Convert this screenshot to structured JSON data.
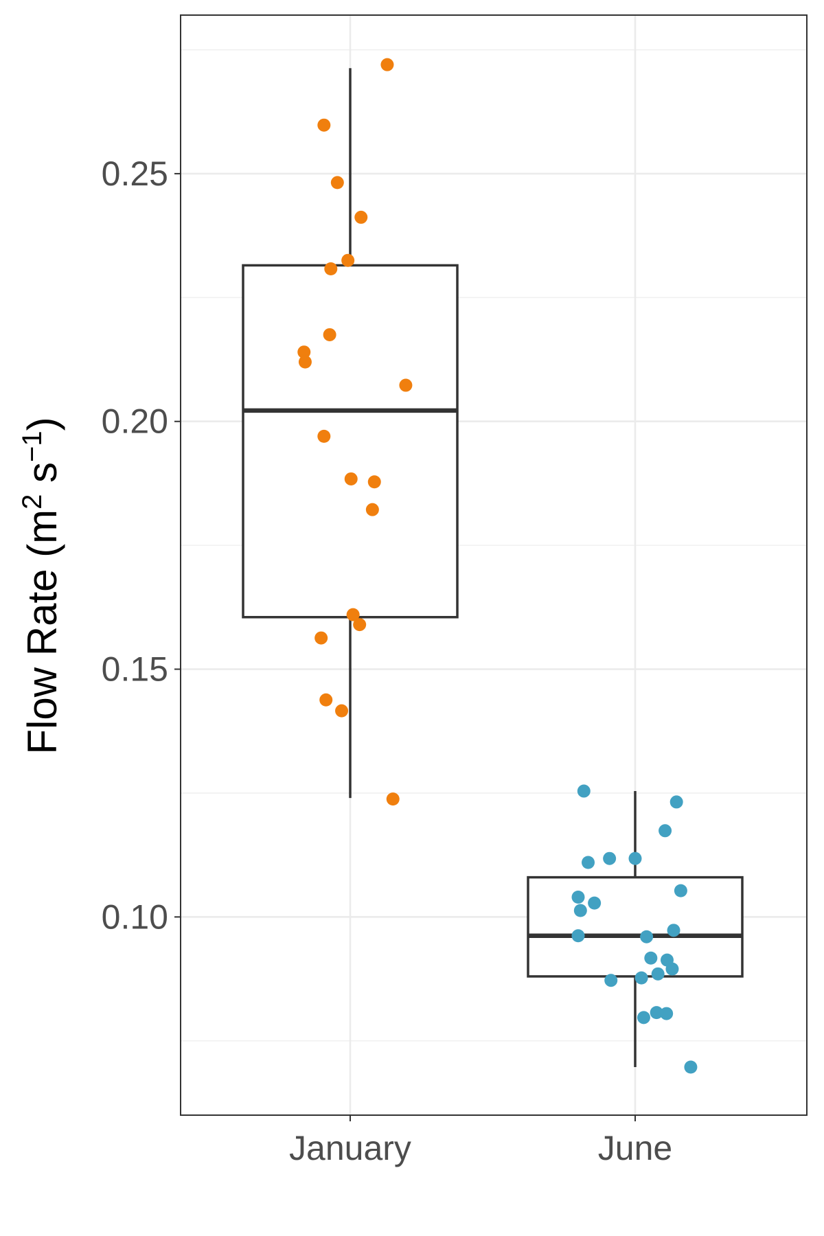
{
  "chart_data": {
    "type": "box",
    "title": "",
    "xlabel": "",
    "ylabel": {
      "text": "Flow Rate (m",
      "sup1": "2",
      "mid": " s",
      "sup2": "−1",
      "end": ")"
    },
    "ylim": [
      0.06,
      0.282
    ],
    "y_ticks": [
      0.1,
      0.15,
      0.2,
      0.25
    ],
    "y_tick_labels": [
      "0.10",
      "0.15",
      "0.20",
      "0.25"
    ],
    "y_minor_ticks": [
      0.075,
      0.125,
      0.175,
      0.225,
      0.275
    ],
    "categories": [
      "January",
      "June"
    ],
    "grid": true,
    "boxes": [
      {
        "category": "January",
        "color": "#f07f0e",
        "whisker_low": 0.124,
        "q1": 0.1605,
        "median": 0.2022,
        "q3": 0.2315,
        "whisker_high": 0.2713,
        "points": [
          {
            "x": 1.13,
            "y": 0.272
          },
          {
            "x": 0.908,
            "y": 0.2598
          },
          {
            "x": 0.955,
            "y": 0.2482
          },
          {
            "x": 1.038,
            "y": 0.2412
          },
          {
            "x": 0.992,
            "y": 0.2325
          },
          {
            "x": 0.932,
            "y": 0.2308
          },
          {
            "x": 0.928,
            "y": 0.2175
          },
          {
            "x": 0.838,
            "y": 0.214
          },
          {
            "x": 0.842,
            "y": 0.212
          },
          {
            "x": 1.195,
            "y": 0.2073
          },
          {
            "x": 0.908,
            "y": 0.197
          },
          {
            "x": 1.003,
            "y": 0.1884
          },
          {
            "x": 1.085,
            "y": 0.1878
          },
          {
            "x": 1.078,
            "y": 0.1822
          },
          {
            "x": 1.01,
            "y": 0.161
          },
          {
            "x": 1.033,
            "y": 0.159
          },
          {
            "x": 0.898,
            "y": 0.1563
          },
          {
            "x": 0.915,
            "y": 0.1438
          },
          {
            "x": 0.97,
            "y": 0.1416
          },
          {
            "x": 1.15,
            "y": 0.1238
          }
        ]
      },
      {
        "category": "June",
        "color": "#42a1c2",
        "whisker_low": 0.0697,
        "q1": 0.088,
        "median": 0.0962,
        "q3": 0.108,
        "whisker_high": 0.1254,
        "points": [
          {
            "x": 1.82,
            "y": 0.1254
          },
          {
            "x": 2.145,
            "y": 0.1232
          },
          {
            "x": 2.105,
            "y": 0.1174
          },
          {
            "x": 1.835,
            "y": 0.111
          },
          {
            "x": 1.91,
            "y": 0.1118
          },
          {
            "x": 2.0,
            "y": 0.1118
          },
          {
            "x": 2.16,
            "y": 0.1053
          },
          {
            "x": 1.8,
            "y": 0.104
          },
          {
            "x": 1.857,
            "y": 0.1028
          },
          {
            "x": 1.808,
            "y": 0.1013
          },
          {
            "x": 1.8,
            "y": 0.0962
          },
          {
            "x": 2.04,
            "y": 0.096
          },
          {
            "x": 2.135,
            "y": 0.0973
          },
          {
            "x": 2.055,
            "y": 0.0917
          },
          {
            "x": 2.112,
            "y": 0.0913
          },
          {
            "x": 2.13,
            "y": 0.0895
          },
          {
            "x": 2.08,
            "y": 0.0885
          },
          {
            "x": 2.022,
            "y": 0.0877
          },
          {
            "x": 1.915,
            "y": 0.0872
          },
          {
            "x": 2.075,
            "y": 0.0807
          },
          {
            "x": 2.11,
            "y": 0.0805
          },
          {
            "x": 2.03,
            "y": 0.0797
          },
          {
            "x": 2.195,
            "y": 0.0697
          }
        ]
      }
    ]
  }
}
